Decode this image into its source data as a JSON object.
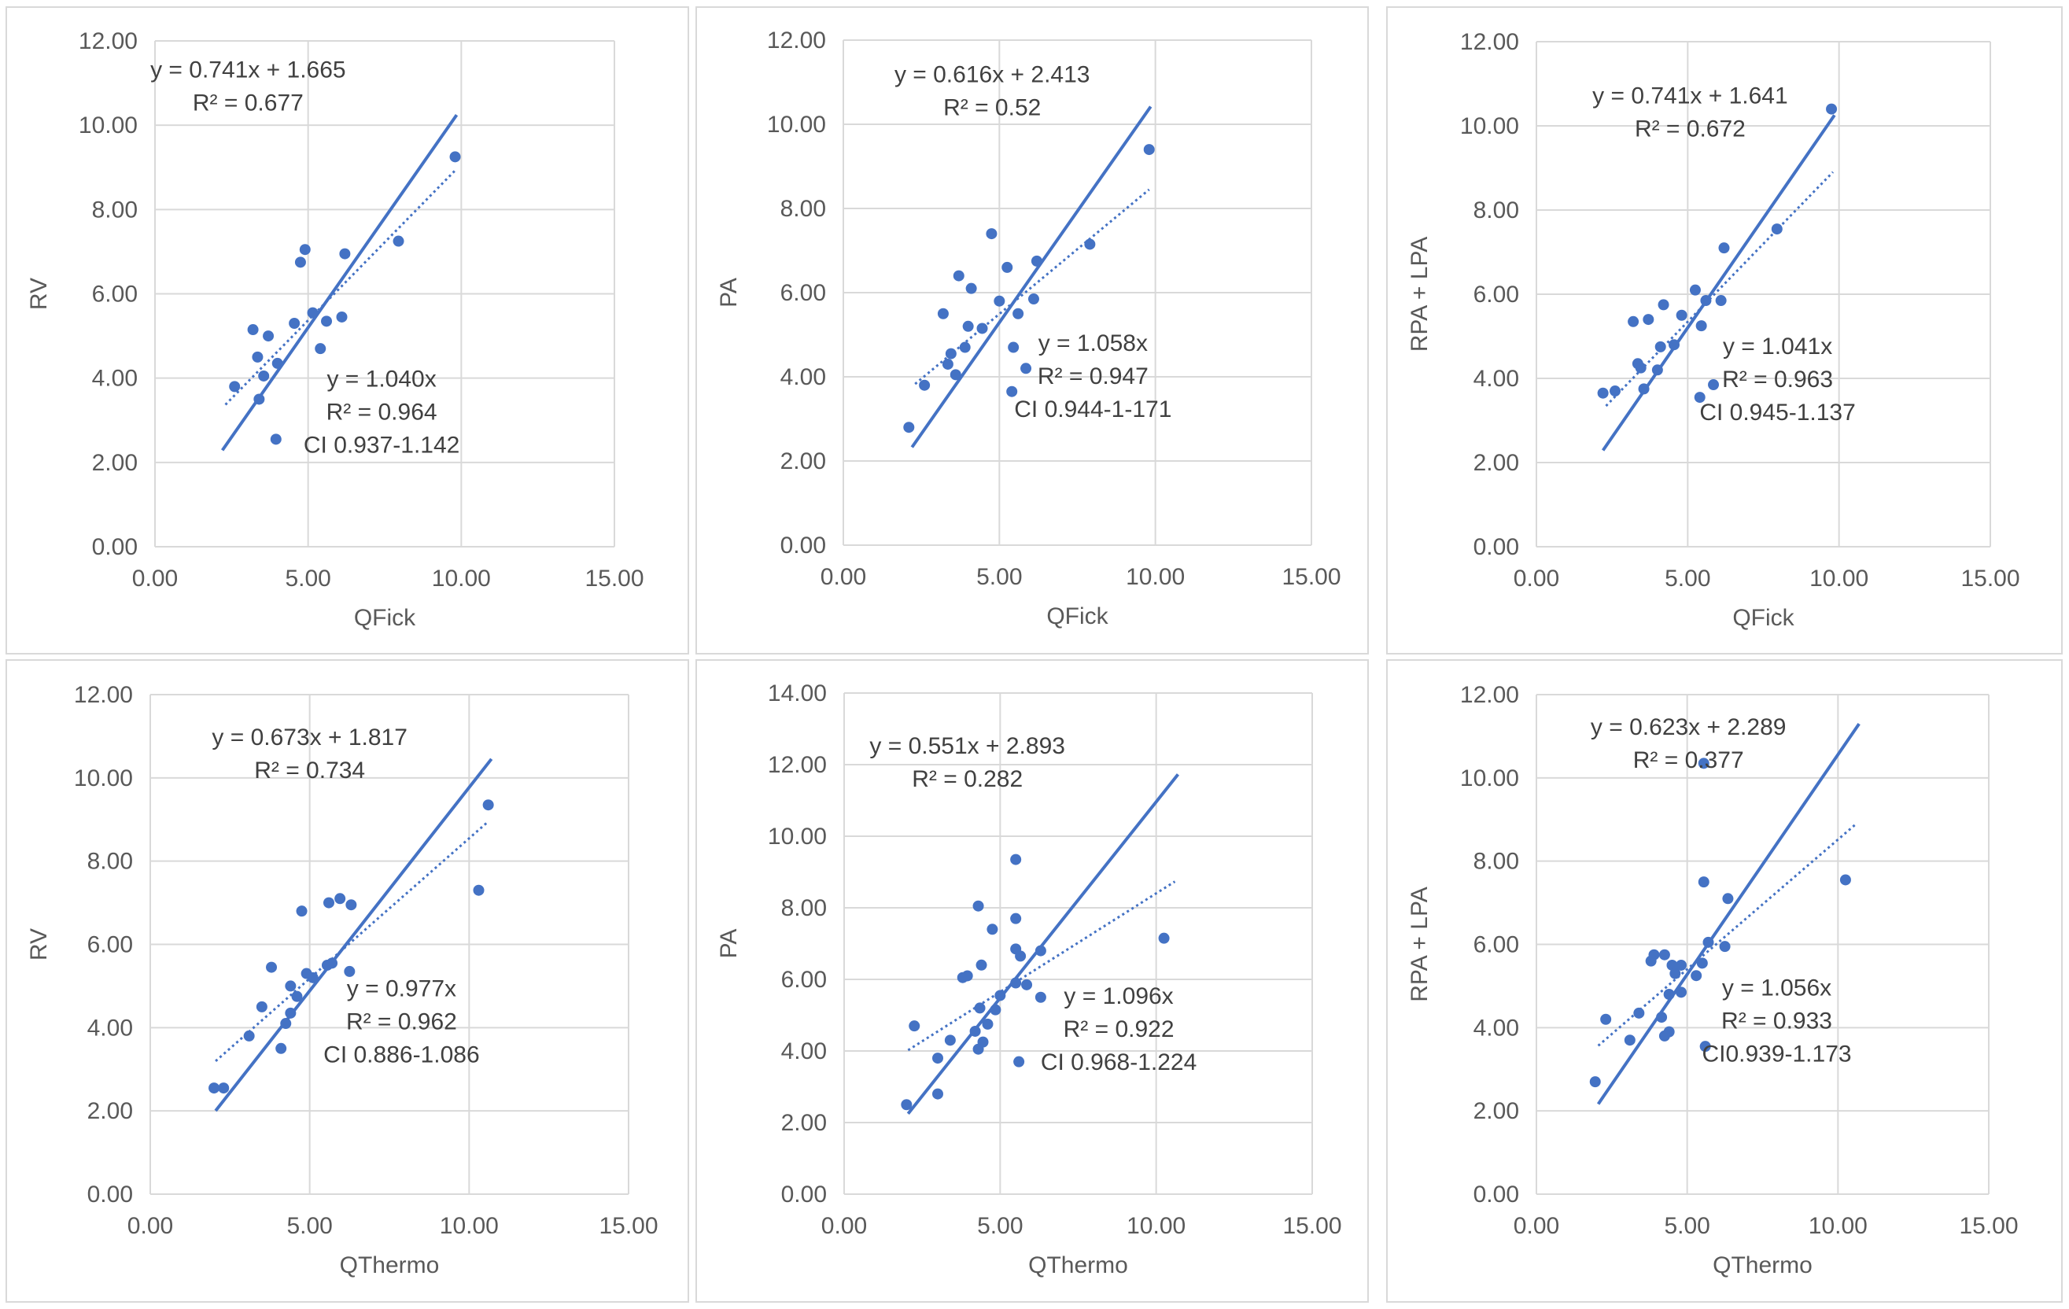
{
  "colors": {
    "series": "#4472c4",
    "grid": "#d9d9d9",
    "text": "#595959",
    "border": "#d9d9d9"
  },
  "chart_data": [
    {
      "type": "scatter",
      "title": "",
      "xlabel": "QFick",
      "ylabel": "RV",
      "xlim": [
        0,
        15
      ],
      "ylim": [
        0,
        12
      ],
      "xticks": [
        0,
        5,
        10,
        15
      ],
      "yticks": [
        0,
        2,
        4,
        6,
        8,
        10,
        12
      ],
      "xtick_labels": [
        "0.00",
        "5.00",
        "10.00",
        "15.00"
      ],
      "ytick_labels": [
        "0.00",
        "2.00",
        "4.00",
        "6.00",
        "8.00",
        "10.00",
        "12.00"
      ],
      "points": [
        [
          2.6,
          3.8
        ],
        [
          3.2,
          5.15
        ],
        [
          3.35,
          4.5
        ],
        [
          3.4,
          3.5
        ],
        [
          3.55,
          4.05
        ],
        [
          3.7,
          5.0
        ],
        [
          3.95,
          2.55
        ],
        [
          4.0,
          4.35
        ],
        [
          4.55,
          5.3
        ],
        [
          4.75,
          6.75
        ],
        [
          4.9,
          7.05
        ],
        [
          5.15,
          5.55
        ],
        [
          5.4,
          4.7
        ],
        [
          5.6,
          5.35
        ],
        [
          6.1,
          5.45
        ],
        [
          6.2,
          6.95
        ],
        [
          7.95,
          7.25
        ],
        [
          9.8,
          9.25
        ]
      ],
      "fit_through_origin": {
        "slope": 1.04,
        "x_range": [
          2.2,
          9.85
        ]
      },
      "fit_linear": {
        "slope": 0.741,
        "intercept": 1.665,
        "x_range": [
          2.3,
          9.8
        ]
      },
      "annotations": [
        {
          "lines": [
            "y = 0.741x + 1.665",
            "R² = 0.677"
          ],
          "pos": [
            3.04,
            11.13
          ]
        },
        {
          "lines": [
            "y = 1.040x",
            "R² = 0.964",
            "CI 0.937-1.142"
          ],
          "pos": [
            7.4,
            3.8
          ]
        }
      ]
    },
    {
      "type": "scatter",
      "title": "",
      "xlabel": "QFick",
      "ylabel": "PA",
      "xlim": [
        0,
        15
      ],
      "ylim": [
        0,
        12
      ],
      "xticks": [
        0,
        5,
        10,
        15
      ],
      "yticks": [
        0,
        2,
        4,
        6,
        8,
        10,
        12
      ],
      "xtick_labels": [
        "0.00",
        "5.00",
        "10.00",
        "15.00"
      ],
      "ytick_labels": [
        "0.00",
        "2.00",
        "4.00",
        "6.00",
        "8.00",
        "10.00",
        "12.00"
      ],
      "points": [
        [
          2.1,
          2.8
        ],
        [
          2.6,
          3.8
        ],
        [
          3.2,
          5.5
        ],
        [
          3.35,
          4.3
        ],
        [
          3.45,
          4.55
        ],
        [
          3.6,
          4.05
        ],
        [
          3.7,
          6.4
        ],
        [
          3.9,
          4.7
        ],
        [
          4.0,
          5.2
        ],
        [
          4.1,
          6.1
        ],
        [
          4.45,
          5.15
        ],
        [
          4.75,
          7.4
        ],
        [
          5.0,
          5.8
        ],
        [
          5.25,
          6.6
        ],
        [
          5.4,
          3.65
        ],
        [
          5.45,
          4.7
        ],
        [
          5.6,
          5.5
        ],
        [
          5.85,
          4.2
        ],
        [
          6.1,
          5.85
        ],
        [
          6.2,
          6.75
        ],
        [
          7.9,
          7.15
        ],
        [
          9.8,
          9.4
        ]
      ],
      "fit_through_origin": {
        "slope": 1.058,
        "x_range": [
          2.2,
          9.85
        ]
      },
      "fit_linear": {
        "slope": 0.616,
        "intercept": 2.413,
        "x_range": [
          2.3,
          9.8
        ]
      },
      "annotations": [
        {
          "lines": [
            "y = 0.616x + 2.413",
            "R² = 0.52"
          ],
          "pos": [
            4.77,
            11.0
          ]
        },
        {
          "lines": [
            "y = 1.058x",
            "R² = 0.947",
            "CI 0.944-1-171"
          ],
          "pos": [
            8.0,
            4.62
          ]
        }
      ]
    },
    {
      "type": "scatter",
      "title": "",
      "xlabel": "QFick",
      "ylabel": "RPA + LPA",
      "xlim": [
        0,
        15
      ],
      "ylim": [
        0,
        12
      ],
      "xticks": [
        0,
        5,
        10,
        15
      ],
      "yticks": [
        0,
        2,
        4,
        6,
        8,
        10,
        12
      ],
      "xtick_labels": [
        "0.00",
        "5.00",
        "10.00",
        "15.00"
      ],
      "ytick_labels": [
        "0.00",
        "2.00",
        "4.00",
        "6.00",
        "8.00",
        "10.00",
        "12.00"
      ],
      "points": [
        [
          2.2,
          3.65
        ],
        [
          2.6,
          3.7
        ],
        [
          3.2,
          5.35
        ],
        [
          3.35,
          4.35
        ],
        [
          3.45,
          4.25
        ],
        [
          3.55,
          3.75
        ],
        [
          3.7,
          5.4
        ],
        [
          4.0,
          4.2
        ],
        [
          4.1,
          4.75
        ],
        [
          4.2,
          5.75
        ],
        [
          4.55,
          4.8
        ],
        [
          4.8,
          5.5
        ],
        [
          5.25,
          6.1
        ],
        [
          5.4,
          3.55
        ],
        [
          5.45,
          5.25
        ],
        [
          5.6,
          5.85
        ],
        [
          5.85,
          3.85
        ],
        [
          6.1,
          5.85
        ],
        [
          6.2,
          7.1
        ],
        [
          7.95,
          7.55
        ],
        [
          9.75,
          10.4
        ]
      ],
      "fit_through_origin": {
        "slope": 1.041,
        "x_range": [
          2.2,
          9.85
        ]
      },
      "fit_linear": {
        "slope": 0.741,
        "intercept": 1.641,
        "x_range": [
          2.3,
          9.8
        ]
      },
      "annotations": [
        {
          "lines": [
            "y = 0.741x + 1.641",
            "R² = 0.672"
          ],
          "pos": [
            5.08,
            10.53
          ]
        },
        {
          "lines": [
            "y = 1.041x",
            "R² = 0.963",
            "CI 0.945-1.137"
          ],
          "pos": [
            7.97,
            4.58
          ]
        }
      ]
    },
    {
      "type": "scatter",
      "title": "",
      "xlabel": "QThermo",
      "ylabel": "RV",
      "xlim": [
        0,
        15
      ],
      "ylim": [
        0,
        12
      ],
      "xticks": [
        0,
        5,
        10,
        15
      ],
      "yticks": [
        0,
        2,
        4,
        6,
        8,
        10,
        12
      ],
      "xtick_labels": [
        "0.00",
        "5.00",
        "10.00",
        "15.00"
      ],
      "ytick_labels": [
        "0.00",
        "2.00",
        "4.00",
        "6.00",
        "8.00",
        "10.00",
        "12.00"
      ],
      "points": [
        [
          2.0,
          2.55
        ],
        [
          2.3,
          2.55
        ],
        [
          3.1,
          3.8
        ],
        [
          3.5,
          4.5
        ],
        [
          3.8,
          5.45
        ],
        [
          4.1,
          3.5
        ],
        [
          4.25,
          4.1
        ],
        [
          4.4,
          4.35
        ],
        [
          4.4,
          5.0
        ],
        [
          4.6,
          4.75
        ],
        [
          4.75,
          6.8
        ],
        [
          4.9,
          5.3
        ],
        [
          5.1,
          5.2
        ],
        [
          5.55,
          5.5
        ],
        [
          5.6,
          7.0
        ],
        [
          5.7,
          5.55
        ],
        [
          5.95,
          7.1
        ],
        [
          6.25,
          5.35
        ],
        [
          6.3,
          6.95
        ],
        [
          10.3,
          7.3
        ],
        [
          10.6,
          9.35
        ]
      ],
      "fit_through_origin": {
        "slope": 0.977,
        "x_range": [
          2.05,
          10.7
        ]
      },
      "fit_linear": {
        "slope": 0.673,
        "intercept": 1.817,
        "x_range": [
          2.05,
          10.6
        ]
      },
      "annotations": [
        {
          "lines": [
            "y = 0.673x + 1.817",
            "R² = 0.734"
          ],
          "pos": [
            5.0,
            10.79
          ]
        },
        {
          "lines": [
            "y = 0.977x",
            "R² = 0.962",
            "CI 0.886-1.086"
          ],
          "pos": [
            7.88,
            4.75
          ]
        }
      ]
    },
    {
      "type": "scatter",
      "title": "",
      "xlabel": "QThermo",
      "ylabel": "PA",
      "xlim": [
        0,
        15
      ],
      "ylim": [
        0,
        14
      ],
      "xticks": [
        0,
        5,
        10,
        15
      ],
      "yticks": [
        0,
        2,
        4,
        6,
        8,
        10,
        12,
        14
      ],
      "xtick_labels": [
        "0.00",
        "5.00",
        "10.00",
        "15.00"
      ],
      "ytick_labels": [
        "0.00",
        "2.00",
        "4.00",
        "6.00",
        "8.00",
        "10.00",
        "12.00",
        "14.00"
      ],
      "points": [
        [
          2.0,
          2.5
        ],
        [
          2.25,
          4.7
        ],
        [
          3.0,
          3.8
        ],
        [
          3.0,
          2.8
        ],
        [
          3.4,
          4.3
        ],
        [
          3.8,
          6.05
        ],
        [
          3.95,
          6.1
        ],
        [
          4.2,
          4.55
        ],
        [
          4.3,
          4.05
        ],
        [
          4.3,
          8.05
        ],
        [
          4.35,
          5.2
        ],
        [
          4.4,
          6.4
        ],
        [
          4.45,
          4.25
        ],
        [
          4.6,
          4.75
        ],
        [
          4.75,
          7.4
        ],
        [
          4.85,
          5.15
        ],
        [
          5.0,
          5.55
        ],
        [
          5.5,
          9.35
        ],
        [
          5.5,
          7.7
        ],
        [
          5.5,
          6.85
        ],
        [
          5.5,
          5.9
        ],
        [
          5.6,
          3.7
        ],
        [
          5.65,
          6.65
        ],
        [
          5.85,
          5.85
        ],
        [
          6.3,
          5.5
        ],
        [
          6.3,
          6.8
        ],
        [
          10.25,
          7.15
        ]
      ],
      "fit_through_origin": {
        "slope": 1.096,
        "x_range": [
          2.05,
          10.7
        ]
      },
      "fit_linear": {
        "slope": 0.551,
        "intercept": 2.893,
        "x_range": [
          2.05,
          10.6
        ]
      },
      "annotations": [
        {
          "lines": [
            "y = 0.551x + 2.893",
            "R² = 0.282"
          ],
          "pos": [
            3.95,
            12.31
          ]
        },
        {
          "lines": [
            "y = 1.096x",
            "R² = 0.922",
            "CI 0.968-1.224"
          ],
          "pos": [
            8.8,
            5.32
          ]
        }
      ]
    },
    {
      "type": "scatter",
      "title": "",
      "xlabel": "QThermo",
      "ylabel": "RPA + LPA",
      "xlim": [
        0,
        15
      ],
      "ylim": [
        0,
        12
      ],
      "xticks": [
        0,
        5,
        10,
        15
      ],
      "yticks": [
        0,
        2,
        4,
        6,
        8,
        10,
        12
      ],
      "xtick_labels": [
        "0.00",
        "5.00",
        "10.00",
        "15.00"
      ],
      "ytick_labels": [
        "0.00",
        "2.00",
        "4.00",
        "6.00",
        "8.00",
        "10.00",
        "12.00"
      ],
      "points": [
        [
          1.95,
          2.7
        ],
        [
          2.3,
          4.2
        ],
        [
          3.1,
          3.7
        ],
        [
          3.4,
          4.35
        ],
        [
          3.8,
          5.6
        ],
        [
          3.9,
          5.75
        ],
        [
          4.15,
          4.25
        ],
        [
          4.25,
          5.75
        ],
        [
          4.25,
          3.8
        ],
        [
          4.4,
          3.9
        ],
        [
          4.4,
          4.8
        ],
        [
          4.5,
          5.5
        ],
        [
          4.6,
          5.3
        ],
        [
          4.8,
          5.5
        ],
        [
          4.8,
          4.85
        ],
        [
          5.3,
          5.25
        ],
        [
          5.5,
          5.55
        ],
        [
          5.55,
          7.5
        ],
        [
          5.55,
          10.35
        ],
        [
          5.6,
          3.55
        ],
        [
          5.7,
          6.05
        ],
        [
          6.25,
          5.95
        ],
        [
          6.35,
          7.1
        ],
        [
          10.25,
          7.55
        ]
      ],
      "fit_through_origin": {
        "slope": 1.056,
        "x_range": [
          2.05,
          10.7
        ]
      },
      "fit_linear": {
        "slope": 0.623,
        "intercept": 2.289,
        "x_range": [
          2.05,
          10.6
        ]
      },
      "annotations": [
        {
          "lines": [
            "y = 0.623x + 2.289",
            "R² = 0.377"
          ],
          "pos": [
            5.04,
            11.04
          ]
        },
        {
          "lines": [
            "y = 1.056x",
            "R² = 0.933",
            "CI0.939-1.173"
          ],
          "pos": [
            7.97,
            4.77
          ]
        }
      ]
    }
  ]
}
